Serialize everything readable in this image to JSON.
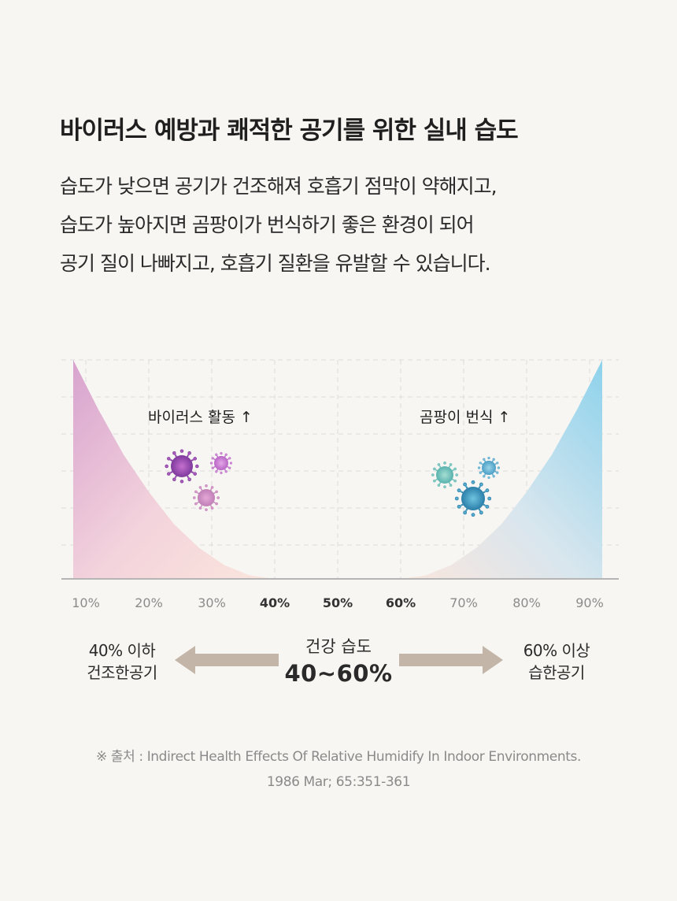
{
  "title": "바이러스 예방과 쾌적한 공기를 위한 실내 습도",
  "body_lines": [
    "습도가 낮으면 공기가 건조해져 호흡기 점막이 약해지고,",
    "습도가 높아지면 곰팡이가 번식하기 좋은 환경이 되어",
    "공기 질이 나빠지고, 호흡기 질환을 유발할 수 있습니다."
  ],
  "chart_data": {
    "type": "area",
    "x_ticks": [
      "10%",
      "20%",
      "30%",
      "40%",
      "50%",
      "60%",
      "70%",
      "80%",
      "90%"
    ],
    "x_ticks_emphasized": [
      "40%",
      "50%",
      "60%"
    ],
    "xlim": [
      10,
      90
    ],
    "grid": true,
    "series": [
      {
        "name": "바이러스 활동 ↑",
        "color": "#d8a3cf",
        "x": [
          8,
          12,
          16,
          20,
          24,
          28,
          32,
          36,
          40
        ],
        "y": [
          100,
          77.3,
          56.7,
          39.7,
          25,
          14.1,
          6.3,
          1.6,
          0
        ]
      },
      {
        "name": "곰팡이 번식 ↑",
        "color": "#8dd2ec",
        "x": [
          60,
          64,
          68,
          72,
          76,
          80,
          84,
          88,
          92
        ],
        "y": [
          0,
          1.6,
          6.3,
          14.1,
          25,
          39.7,
          56.7,
          77.3,
          100
        ]
      }
    ]
  },
  "legend_labels": {
    "virus": "바이러스 활동 ↑",
    "mold": "곰팡이 번식 ↑"
  },
  "icons": {
    "virus_icons": [
      "virus-icon",
      "virus-icon",
      "virus-icon"
    ],
    "mold_icons": [
      "mold-spore-icon",
      "mold-spore-icon",
      "mold-spore-icon"
    ],
    "arrow_left": "arrow-left-icon",
    "arrow_right": "arrow-right-icon"
  },
  "colors": {
    "virus": "#a14fb0",
    "mold": "#3d9fc2",
    "arrow": "#c3b6a9"
  },
  "ranges": {
    "low": {
      "line1": "40% 이하",
      "line2": "건조한공기"
    },
    "healthy": {
      "caption": "건강 습도",
      "range": "40~60%"
    },
    "high": {
      "line1": "60% 이상",
      "line2": "습한공기"
    }
  },
  "source": {
    "line1": "※ 출처 : Indirect Health Effects Of Relative Humidify In Indoor Environments.",
    "line2": "1986 Mar; 65:351-361"
  }
}
